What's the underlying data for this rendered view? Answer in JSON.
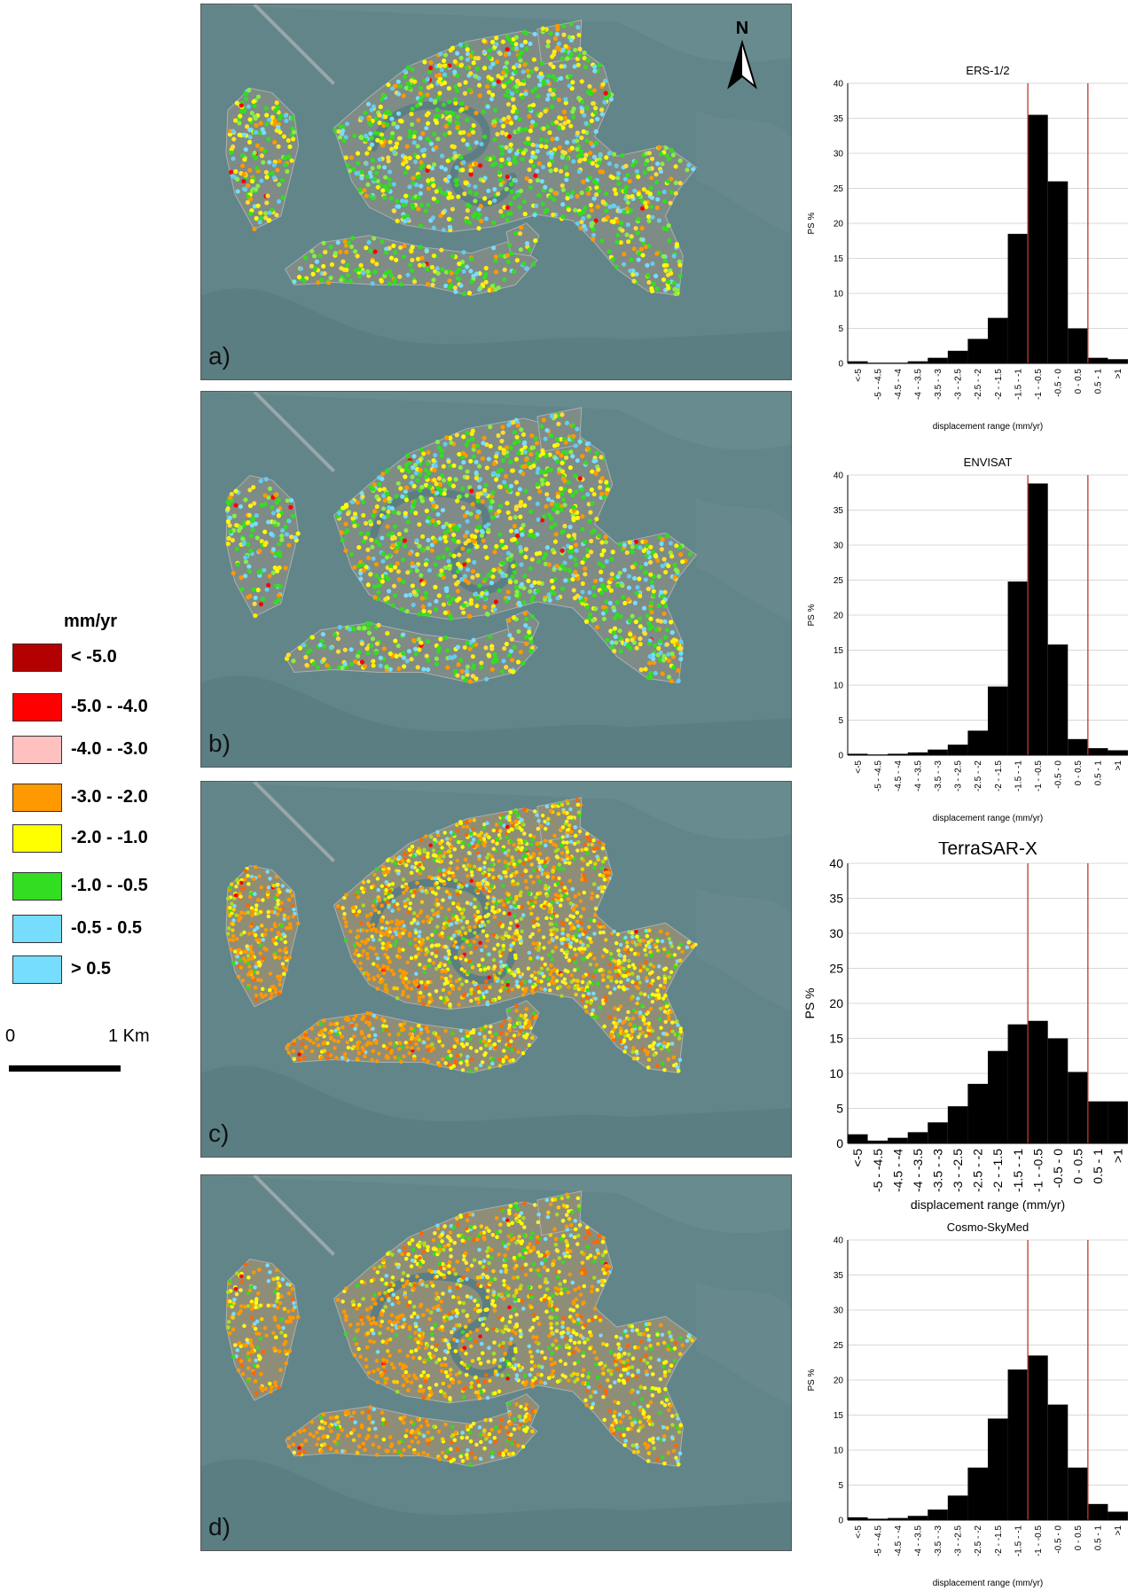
{
  "panels": [
    {
      "label": "a)",
      "style": "sparse"
    },
    {
      "label": "b)",
      "style": "sparse"
    },
    {
      "label": "c)",
      "style": "dense"
    },
    {
      "label": "d)",
      "style": "dense"
    }
  ],
  "north_label": "N",
  "legend": {
    "title": "mm/yr",
    "items": [
      {
        "label": "< -5.0",
        "color": "#b30000"
      },
      {
        "label": "-5.0 - -4.0",
        "color": "#ff0000"
      },
      {
        "label": "-4.0 - -3.0",
        "color": "#ffc0c0"
      },
      {
        "label": "-3.0 - -2.0",
        "color": "#ff9900"
      },
      {
        "label": "-2.0 - -1.0",
        "color": "#ffff00"
      },
      {
        "label": "-1.0 - -0.5",
        "color": "#33dd22"
      },
      {
        "label": "-0.5 -  0.5",
        "color": "#77ddff"
      },
      {
        "label": "> 0.5",
        "color": "#77ddff"
      }
    ]
  },
  "scale": {
    "zero": "0",
    "distance": "1 Km"
  },
  "chart_data": [
    {
      "type": "bar",
      "title": "ERS-1/2",
      "xlabel": "displacement range (mm/yr)",
      "ylabel": "PS %",
      "ylim": [
        0,
        40
      ],
      "yticks": [
        0,
        5,
        10,
        15,
        20,
        25,
        30,
        35,
        40
      ],
      "categories": [
        "<-5",
        "-5 - -4.5",
        "-4.5 - -4",
        "-4 - -3.5",
        "-3.5 - -3",
        "-3 - -2.5",
        "-2.5 - -2",
        "-2 - -1.5",
        "-1.5 - -1",
        "-1 - -0.5",
        "-0.5 - 0",
        "0 - 0.5",
        "0.5 - 1",
        ">1"
      ],
      "values": [
        0.3,
        0.1,
        0.1,
        0.3,
        0.8,
        1.8,
        3.5,
        6.5,
        18.5,
        35.5,
        26,
        5,
        0.8,
        0.6
      ],
      "reference_lines": [
        "-1 - -0.5",
        "0.5 - 1"
      ]
    },
    {
      "type": "bar",
      "title": "ENVISAT",
      "xlabel": "displacement range (mm/yr)",
      "ylabel": "PS %",
      "ylim": [
        0,
        40
      ],
      "yticks": [
        0,
        5,
        10,
        15,
        20,
        25,
        30,
        35,
        40
      ],
      "categories": [
        "<-5",
        "-5 - -4.5",
        "-4.5 - -4",
        "-4 - -3.5",
        "-3.5 - -3",
        "-3 - -2.5",
        "-2.5 - -2",
        "-2 - -1.5",
        "-1.5 - -1",
        "-1 - -0.5",
        "-0.5 - 0",
        "0 - 0.5",
        "0.5 - 1",
        ">1"
      ],
      "values": [
        0.2,
        0.1,
        0.2,
        0.4,
        0.8,
        1.5,
        3.5,
        9.8,
        24.8,
        38.8,
        15.8,
        2.3,
        1,
        0.7
      ],
      "reference_lines": [
        "-1 - -0.5",
        "0.5 - 1"
      ]
    },
    {
      "type": "bar",
      "title": "TerraSAR-X",
      "xlabel": "displacement range (mm/yr)",
      "ylabel": "PS %",
      "ylim": [
        0,
        40
      ],
      "yticks": [
        0,
        5,
        10,
        15,
        20,
        25,
        30,
        35,
        40
      ],
      "categories": [
        "<-5",
        "-5 - -4.5",
        "-4.5 - -4",
        "-4 - -3.5",
        "-3.5 - -3",
        "-3 - -2.5",
        "-2.5 - -2",
        "-2 - -1.5",
        "-1.5 - -1",
        "-1 - -0.5",
        "-0.5 - 0",
        "0 - 0.5",
        "0.5 - 1",
        ">1"
      ],
      "values": [
        1.3,
        0.4,
        0.8,
        1.6,
        3,
        5.3,
        8.5,
        13.2,
        17,
        17.5,
        15,
        10.2,
        6,
        6
      ],
      "reference_lines": [
        "-1 - -0.5",
        "0.5 - 1"
      ]
    },
    {
      "type": "bar",
      "title": "Cosmo-SkyMed",
      "xlabel": "displacement range (mm/yr)",
      "ylabel": "PS %",
      "ylim": [
        0,
        40
      ],
      "yticks": [
        0,
        5,
        10,
        15,
        20,
        25,
        30,
        35,
        40
      ],
      "categories": [
        "<-5",
        "-5 - -4.5",
        "-4.5 - -4",
        "-4 - -3.5",
        "-3.5 - -3",
        "-3 - -2.5",
        "-2.5 - -2",
        "-2 - -1.5",
        "-1.5 - -1",
        "-1 - -0.5",
        "-0.5 - 0",
        "0 - 0.5",
        "0.5 - 1",
        ">1"
      ],
      "values": [
        0.4,
        0.2,
        0.3,
        0.6,
        1.5,
        3.5,
        7.5,
        14.5,
        21.5,
        23.5,
        16.5,
        7.5,
        2.3,
        1.2
      ],
      "reference_lines": [
        "-1 - -0.5",
        "0.5 - 1"
      ]
    }
  ]
}
